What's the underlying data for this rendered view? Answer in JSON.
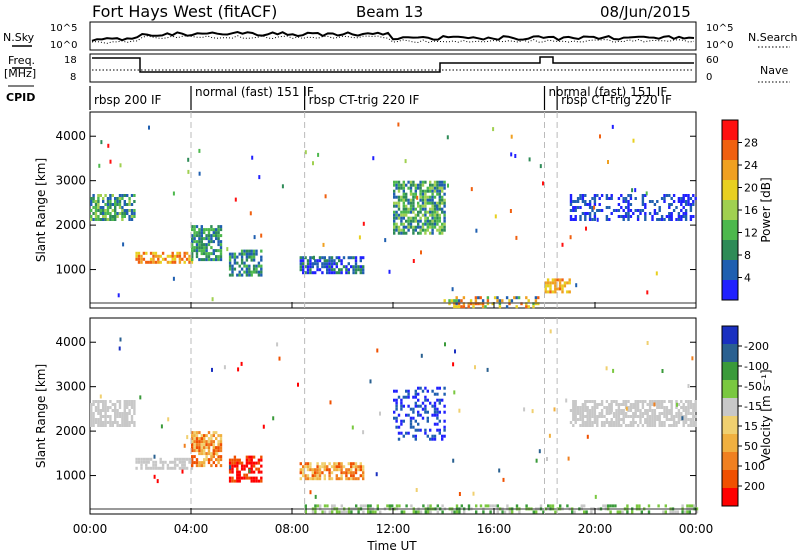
{
  "header": {
    "title": "Fort Hays West (fitACF)",
    "beam": "Beam 13",
    "date": "08/Jun/2015"
  },
  "panels": {
    "nsky_label": "N.Sky",
    "nsky_ticks": [
      "10^5",
      "10^0"
    ],
    "nsearch_label": "N.Search",
    "nsearch_ticks": [
      "10^5",
      "10^0"
    ],
    "freq_label_line1": "Freq.",
    "freq_label_line2": "[MHz]",
    "freq_ticks": [
      "18",
      "8"
    ],
    "nave_label": "Nave",
    "nave_ticks": [
      "60",
      "0"
    ],
    "cpid_label": "CPID",
    "cpid_segments": [
      {
        "text": "rbsp 200 IF",
        "start_h": 0.0
      },
      {
        "text": "normal (fast) 151 IF",
        "start_h": 4.0
      },
      {
        "text": "rbsp CT-trig 220 IF",
        "start_h": 8.5
      },
      {
        "text": "normal (fast) 151 IF",
        "start_h": 18.0
      },
      {
        "text": "rbsp CT-trig 220 IF",
        "start_h": 18.5
      }
    ]
  },
  "colors": {
    "power": [
      "#2020ff",
      "#1f5fb0",
      "#2e8b57",
      "#4cb84c",
      "#a0d050",
      "#e8d020",
      "#f0a020",
      "#f06010",
      "#ff1010"
    ],
    "velocity": [
      "#ff0000",
      "#f05000",
      "#f08020",
      "#f0b040",
      "#f0d070",
      "#c8c8c8",
      "#7ac840",
      "#3a9a3a",
      "#2a6090",
      "#1a30c0"
    ],
    "ground": "#b0b0b0"
  },
  "chart_data": [
    {
      "type": "heatmap",
      "title": "",
      "xlabel": "",
      "ylabel": "Slant Range [km]",
      "xlim_hours": [
        0,
        24
      ],
      "ylim": [
        180,
        4500
      ],
      "y_ticks": [
        "1000",
        "2000",
        "3000",
        "4000"
      ],
      "x_ticks": [
        "00:00",
        "04:00",
        "08:00",
        "12:00",
        "16:00",
        "20:00",
        "00:00"
      ],
      "colorbar_label": "Power [dB]",
      "colorbar_ticks": [
        "4",
        "8",
        "12",
        "16",
        "20",
        "24",
        "28"
      ],
      "regions": [
        {
          "t0": 0.0,
          "t1": 1.8,
          "r0": 2150,
          "r1": 2700,
          "c": "mixed_green"
        },
        {
          "t0": 1.8,
          "t1": 4.0,
          "r0": 1150,
          "r1": 1400,
          "c": "orange"
        },
        {
          "t0": 4.0,
          "t1": 5.2,
          "r0": 1200,
          "r1": 2000,
          "c": "green_blue"
        },
        {
          "t0": 5.5,
          "t1": 6.8,
          "r0": 900,
          "r1": 1450,
          "c": "green_blue"
        },
        {
          "t0": 8.3,
          "t1": 10.8,
          "r0": 950,
          "r1": 1300,
          "c": "blue_green"
        },
        {
          "t0": 12.0,
          "t1": 14.0,
          "r0": 1800,
          "r1": 3000,
          "c": "mixed_green"
        },
        {
          "t0": 14.0,
          "t1": 17.8,
          "r0": 180,
          "r1": 400,
          "c": "ground"
        },
        {
          "t0": 18.0,
          "t1": 19.0,
          "r0": 500,
          "r1": 800,
          "c": "orange"
        },
        {
          "t0": 19.0,
          "t1": 24.0,
          "r0": 2100,
          "r1": 2700,
          "c": "blue"
        }
      ]
    },
    {
      "type": "heatmap",
      "title": "",
      "xlabel": "Time UT",
      "ylabel": "Slant Range [km]",
      "xlim_hours": [
        0,
        24
      ],
      "ylim": [
        180,
        4500
      ],
      "y_ticks": [
        "1000",
        "2000",
        "3000",
        "4000"
      ],
      "x_ticks": [
        "00:00",
        "04:00",
        "08:00",
        "12:00",
        "16:00",
        "20:00",
        "00:00"
      ],
      "colorbar_label": "Velocity [m s⁻¹]",
      "colorbar_ticks": [
        "200",
        "100",
        "50",
        "15",
        "-15",
        "-50",
        "-100",
        "-200"
      ],
      "regions": [
        {
          "t0": 0.0,
          "t1": 1.8,
          "r0": 2150,
          "r1": 2700,
          "c": "gray"
        },
        {
          "t0": 1.8,
          "t1": 4.0,
          "r0": 1150,
          "r1": 1400,
          "c": "gray"
        },
        {
          "t0": 4.0,
          "t1": 5.2,
          "r0": 1200,
          "r1": 2000,
          "c": "orange"
        },
        {
          "t0": 5.5,
          "t1": 6.8,
          "r0": 900,
          "r1": 1450,
          "c": "red"
        },
        {
          "t0": 8.3,
          "t1": 10.8,
          "r0": 950,
          "r1": 1300,
          "c": "orange"
        },
        {
          "t0": 12.0,
          "t1": 14.0,
          "r0": 1800,
          "r1": 3000,
          "c": "blue"
        },
        {
          "t0": 8.5,
          "t1": 24.0,
          "r0": 180,
          "r1": 350,
          "c": "ground_green"
        },
        {
          "t0": 19.0,
          "t1": 24.0,
          "r0": 2100,
          "r1": 2700,
          "c": "gray"
        }
      ]
    }
  ],
  "axes": {
    "x_title": "Time UT",
    "power_ylabel": "Slant Range [km]",
    "velocity_ylabel": "Slant Range [km]"
  }
}
